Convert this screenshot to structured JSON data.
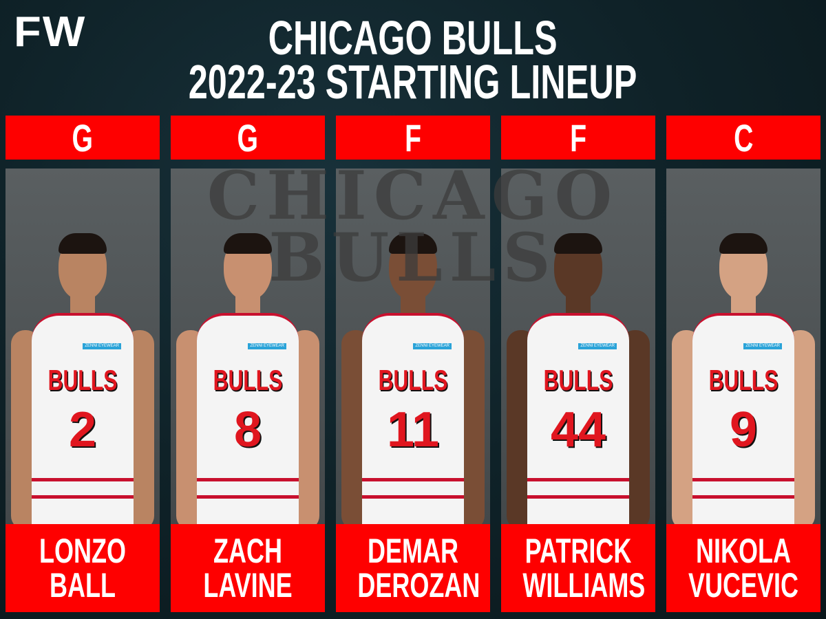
{
  "brand": {
    "logo": "FW"
  },
  "title": {
    "line1": "CHICAGO BULLS",
    "line2": "2022-23 STARTING LINEUP"
  },
  "watermark": {
    "line1": "CHICAGO",
    "line2": "BULLS"
  },
  "colors": {
    "accent": "#fe0000",
    "background": "#0f2228"
  },
  "players": [
    {
      "position": "G",
      "first": "LONZO",
      "last": "BALL",
      "jersey_text": "BULLS",
      "number": "2",
      "patch": "ZENNI EYEWEAR"
    },
    {
      "position": "G",
      "first": "ZACH",
      "last": "LAVINE",
      "jersey_text": "BULLS",
      "number": "8",
      "patch": "ZENNI EYEWEAR"
    },
    {
      "position": "F",
      "first": "DEMAR",
      "last": "DEROZAN",
      "jersey_text": "BULLS",
      "number": "11",
      "patch": "ZENNI EYEWEAR"
    },
    {
      "position": "F",
      "first": "PATRICK",
      "last": "WILLIAMS",
      "jersey_text": "BULLS",
      "number": "44",
      "patch": "ZENNI EYEWEAR"
    },
    {
      "position": "C",
      "first": "NIKOLA",
      "last": "VUCEVIC",
      "jersey_text": "BULLS",
      "number": "9",
      "patch": "ZENNI EYEWEAR"
    }
  ]
}
